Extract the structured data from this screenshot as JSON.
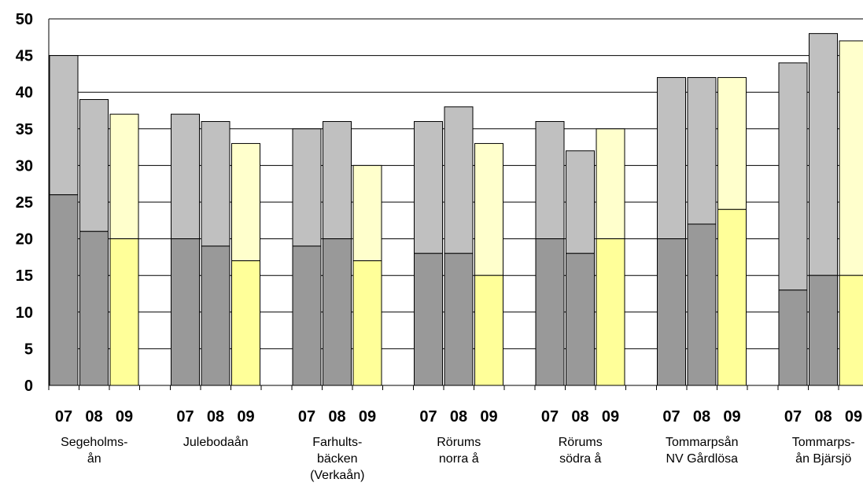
{
  "chart_data": {
    "type": "bar",
    "stacked": true,
    "ylim": [
      0,
      50
    ],
    "yticks": [
      "0",
      "5",
      "10",
      "15",
      "20",
      "25",
      "30",
      "35",
      "40",
      "45",
      "50"
    ],
    "grid": true,
    "legend": "none",
    "colors": {
      "gray_lower": "#999999",
      "gray_upper": "#c0c0c0",
      "yellow_lower": "#ffff99",
      "yellow_upper": "#ffffcc"
    },
    "groups": [
      {
        "label_lines": [
          "Segeholms-",
          "ån"
        ],
        "years": [
          "07",
          "08",
          "09"
        ],
        "lower": [
          26,
          21,
          20
        ],
        "total": [
          45,
          39,
          37
        ]
      },
      {
        "label_lines": [
          "Julebodaån"
        ],
        "years": [
          "07",
          "08",
          "09"
        ],
        "lower": [
          20,
          19,
          17
        ],
        "total": [
          37,
          36,
          33
        ]
      },
      {
        "label_lines": [
          "Farhults-",
          "bäcken",
          "(Verkaån)"
        ],
        "years": [
          "07",
          "08",
          "09"
        ],
        "lower": [
          19,
          20,
          17
        ],
        "total": [
          35,
          36,
          30
        ]
      },
      {
        "label_lines": [
          "Rörums",
          "norra å"
        ],
        "years": [
          "07",
          "08",
          "09"
        ],
        "lower": [
          18,
          18,
          15
        ],
        "total": [
          36,
          38,
          33
        ]
      },
      {
        "label_lines": [
          "Rörums",
          "södra å"
        ],
        "years": [
          "07",
          "08",
          "09"
        ],
        "lower": [
          20,
          18,
          20
        ],
        "total": [
          36,
          32,
          35
        ]
      },
      {
        "label_lines": [
          "Tommarpsån",
          "NV Gårdlösa"
        ],
        "years": [
          "07",
          "08",
          "09"
        ],
        "lower": [
          20,
          22,
          24
        ],
        "total": [
          42,
          42,
          42
        ]
      },
      {
        "label_lines": [
          "Tommarps-",
          "ån Bjärsjö"
        ],
        "years": [
          "07",
          "08",
          "09"
        ],
        "lower": [
          13,
          15,
          15
        ],
        "total": [
          44,
          48,
          47
        ]
      }
    ]
  }
}
